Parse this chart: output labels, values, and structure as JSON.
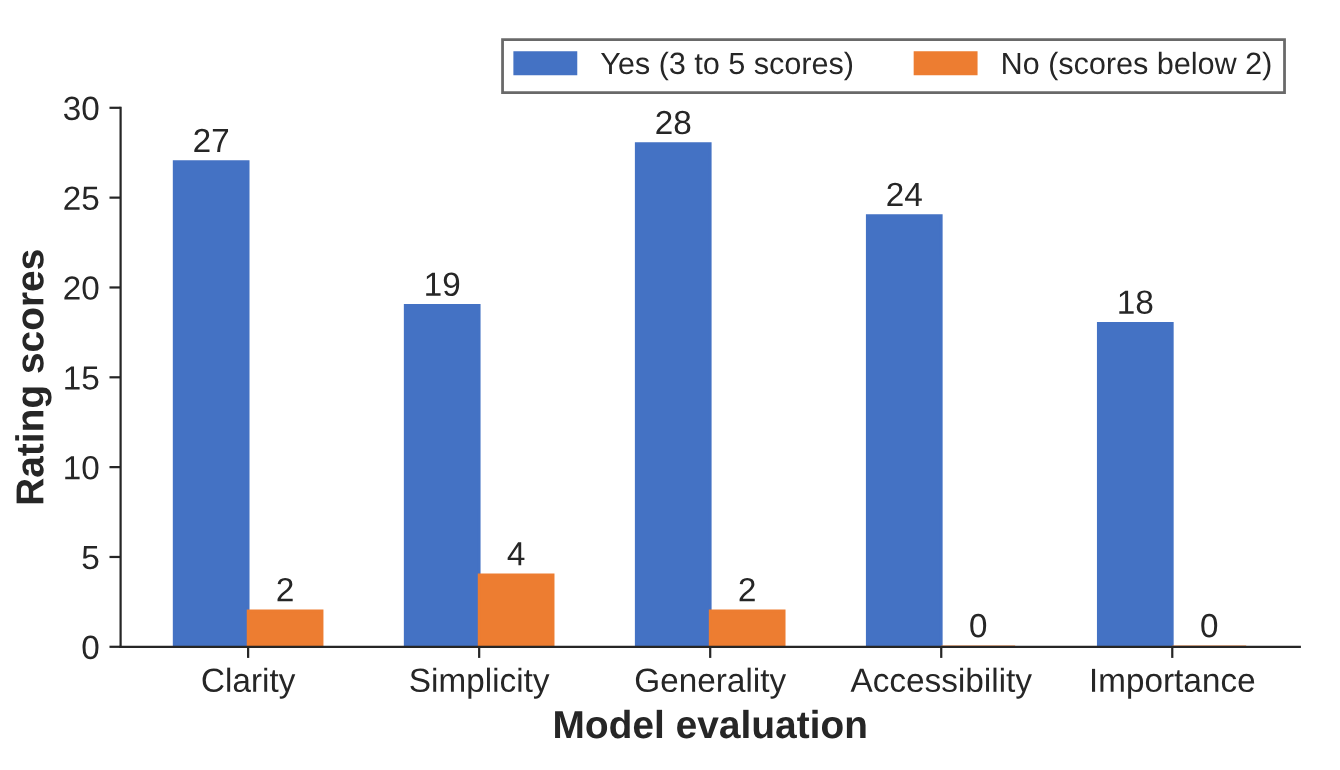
{
  "chart_data": {
    "type": "bar",
    "xlabel": "Model evaluation",
    "ylabel": "Rating scores",
    "categories": [
      "Clarity",
      "Simplicity",
      "Generality",
      "Accessibility",
      "Importance"
    ],
    "series": [
      {
        "name": "Yes (3 to 5 scores)",
        "color": "#4472c4",
        "values": [
          27,
          19,
          28,
          24,
          18
        ]
      },
      {
        "name": "No (scores below 2)",
        "color": "#ed7d31",
        "values": [
          2,
          4,
          2,
          0,
          0
        ]
      }
    ],
    "ylim": [
      0,
      30
    ],
    "yticks": [
      0,
      5,
      10,
      15,
      20,
      25,
      30
    ],
    "grid": false,
    "legend": "top right",
    "data_labels": true
  }
}
